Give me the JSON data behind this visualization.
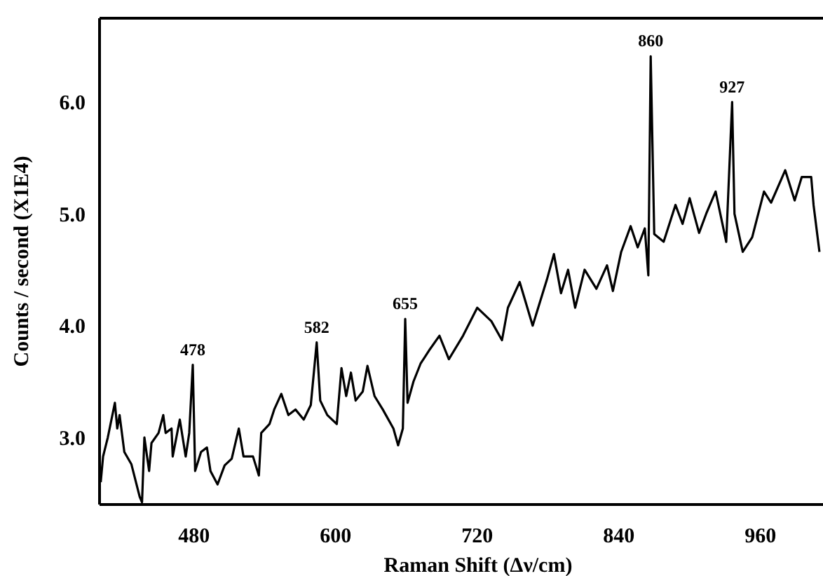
{
  "chart_data": {
    "type": "line",
    "xlabel": "Raman Shift (Δν/cm)",
    "ylabel": "Counts / second (X1E4)",
    "xlim": [
      400,
      1013
    ],
    "ylim": [
      2.4,
      6.75
    ],
    "xticks": [
      480,
      600,
      720,
      840,
      960
    ],
    "yticks": [
      {
        "value": 3,
        "label": "3.0"
      },
      {
        "value": 4,
        "label": "4.0"
      },
      {
        "value": 5,
        "label": "5.0"
      },
      {
        "value": 6,
        "label": "6.0"
      }
    ],
    "marker": "none",
    "line_style": "solid",
    "series": [
      {
        "color": "#000000",
        "x": [
          401,
          403,
          407,
          413,
          415,
          417,
          421,
          427,
          434,
          436,
          438,
          442,
          444,
          450,
          454,
          456,
          461,
          462,
          468,
          473,
          476,
          479,
          481,
          486,
          491,
          494,
          500,
          506,
          512,
          518,
          522,
          530,
          535,
          537,
          544,
          548,
          554,
          560,
          566,
          573,
          579,
          584,
          587,
          593,
          601,
          605,
          609,
          613,
          617,
          623,
          627,
          633,
          640,
          649,
          653,
          657,
          659,
          661,
          666,
          672,
          680,
          688,
          696,
          708,
          720,
          732,
          741,
          746,
          756,
          767,
          779,
          785,
          791,
          797,
          803,
          811,
          821,
          830,
          835,
          842,
          850,
          856,
          862,
          865,
          867,
          870,
          878,
          888,
          894,
          900,
          908,
          914,
          922,
          931,
          936,
          938,
          945,
          953,
          963,
          969,
          981,
          989,
          995,
          1003,
          1005,
          1010
        ],
        "values": [
          2.6,
          2.83,
          3.0,
          3.31,
          3.08,
          3.2,
          2.87,
          2.76,
          2.47,
          2.42,
          3.0,
          2.7,
          2.95,
          3.04,
          3.2,
          3.04,
          3.08,
          2.83,
          3.16,
          2.83,
          3.04,
          3.65,
          2.7,
          2.87,
          2.91,
          2.7,
          2.58,
          2.75,
          2.81,
          3.08,
          2.83,
          2.83,
          2.66,
          3.04,
          3.12,
          3.25,
          3.39,
          3.2,
          3.25,
          3.16,
          3.29,
          3.85,
          3.33,
          3.2,
          3.12,
          3.62,
          3.37,
          3.58,
          3.33,
          3.41,
          3.64,
          3.37,
          3.25,
          3.08,
          2.93,
          3.08,
          4.06,
          3.31,
          3.5,
          3.66,
          3.79,
          3.91,
          3.7,
          3.91,
          4.16,
          4.04,
          3.87,
          4.16,
          4.39,
          4.0,
          4.41,
          4.64,
          4.29,
          4.5,
          4.16,
          4.5,
          4.33,
          4.54,
          4.31,
          4.66,
          4.89,
          4.7,
          4.87,
          4.45,
          6.41,
          4.82,
          4.75,
          5.08,
          4.91,
          5.14,
          4.83,
          5.0,
          5.2,
          4.75,
          6.0,
          5.0,
          4.66,
          4.79,
          5.2,
          5.1,
          5.39,
          5.12,
          5.33,
          5.33,
          5.08,
          4.66
        ]
      }
    ],
    "annotations": [
      {
        "text": "478",
        "x": 479,
        "y": 3.65
      },
      {
        "text": "582",
        "x": 584,
        "y": 3.85
      },
      {
        "text": "655",
        "x": 659,
        "y": 4.06
      },
      {
        "text": "860",
        "x": 867,
        "y": 6.41
      },
      {
        "text": "927",
        "x": 936,
        "y": 6.0
      }
    ]
  }
}
